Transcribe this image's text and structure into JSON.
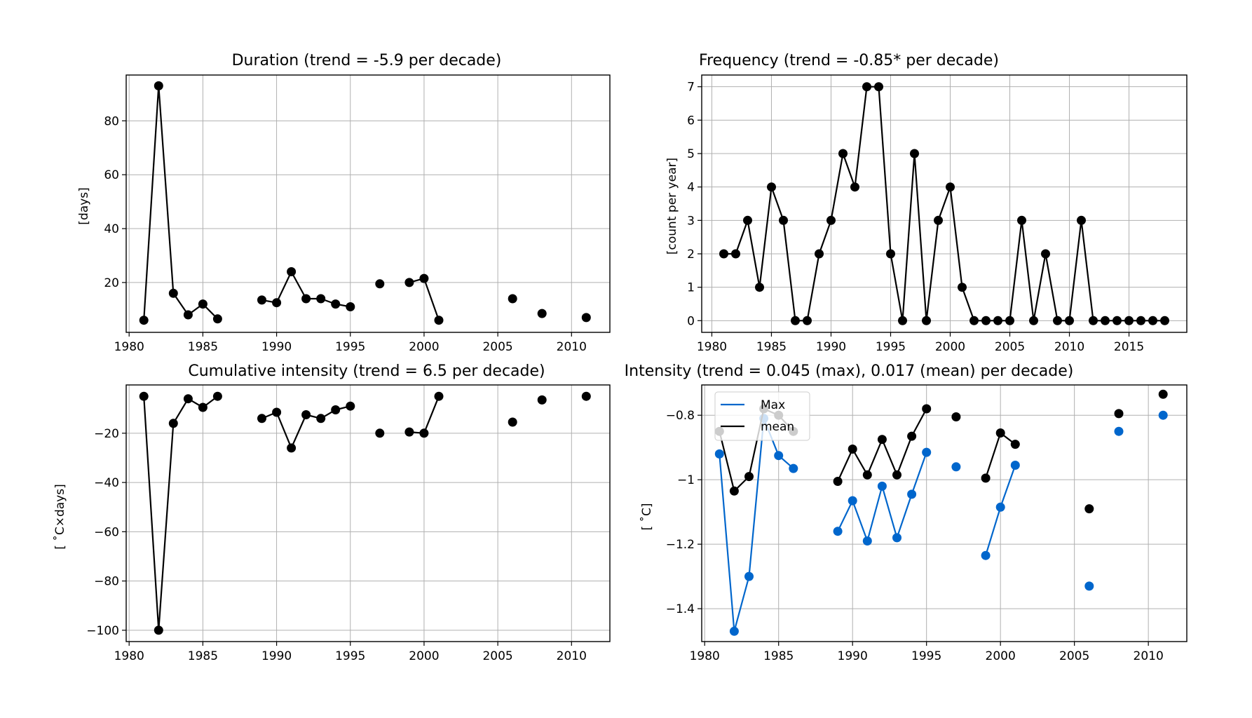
{
  "chart_data": [
    {
      "type": "line",
      "title": "Duration (trend = -5.9 per decade)",
      "xlabel": "",
      "ylabel": "[days]",
      "xlim": [
        1979.8,
        2012.6
      ],
      "ylim": [
        1.5,
        97
      ],
      "xticks": [
        1980,
        1985,
        1990,
        1995,
        2000,
        2005,
        2010
      ],
      "yticks": [
        20,
        40,
        60,
        80
      ],
      "grid": true,
      "series": [
        {
          "color": "#000000",
          "x": [
            1981,
            1982,
            1983,
            1984,
            1985,
            1986,
            1987,
            1988,
            1989,
            1990,
            1991,
            1992,
            1993,
            1994,
            1995,
            1996,
            1997,
            1998,
            1999,
            2000,
            2001,
            2002,
            2003,
            2004,
            2005,
            2006,
            2007,
            2008,
            2009,
            2010,
            2011
          ],
          "values": [
            6,
            93,
            16,
            8,
            12,
            6.5,
            null,
            null,
            13.5,
            12.5,
            24,
            14,
            14,
            12,
            11,
            null,
            19.5,
            null,
            20,
            21.5,
            6,
            null,
            null,
            null,
            null,
            14,
            null,
            8.5,
            null,
            null,
            7
          ]
        }
      ]
    },
    {
      "type": "line",
      "title": "Frequency (trend = -0.85* per decade)",
      "xlabel": "",
      "ylabel": "[count per year]",
      "xlim": [
        1979.15,
        2019.85
      ],
      "ylim": [
        -0.35,
        7.35
      ],
      "xticks": [
        1980,
        1985,
        1990,
        1995,
        2000,
        2005,
        2010,
        2015
      ],
      "yticks": [
        0,
        1,
        2,
        3,
        4,
        5,
        6,
        7
      ],
      "grid": true,
      "series": [
        {
          "color": "#000000",
          "x": [
            1981,
            1982,
            1983,
            1984,
            1985,
            1986,
            1987,
            1988,
            1989,
            1990,
            1991,
            1992,
            1993,
            1994,
            1995,
            1996,
            1997,
            1998,
            1999,
            2000,
            2001,
            2002,
            2003,
            2004,
            2005,
            2006,
            2007,
            2008,
            2009,
            2010,
            2011,
            2012,
            2013,
            2014,
            2015,
            2016,
            2017,
            2018
          ],
          "values": [
            2,
            2,
            3,
            1,
            4,
            3,
            0,
            0,
            2,
            3,
            5,
            4,
            7,
            7,
            2,
            0,
            5,
            0,
            3,
            4,
            1,
            0,
            0,
            0,
            0,
            3,
            0,
            2,
            0,
            0,
            3,
            0,
            0,
            0,
            0,
            0,
            0,
            0
          ]
        }
      ]
    },
    {
      "type": "line",
      "title": "Cumulative intensity (trend = 6.5 per decade)",
      "xlabel": "",
      "ylabel": "[$^\\circ$C×days]",
      "ylabel_display": "[ ˚C×days]",
      "xlim": [
        1979.8,
        2012.6
      ],
      "ylim": [
        -104.6,
        -0.4
      ],
      "xticks": [
        1980,
        1985,
        1990,
        1995,
        2000,
        2005,
        2010
      ],
      "yticks": [
        -100,
        -80,
        -60,
        -40,
        -20
      ],
      "grid": true,
      "series": [
        {
          "color": "#000000",
          "x": [
            1981,
            1982,
            1983,
            1984,
            1985,
            1986,
            1987,
            1988,
            1989,
            1990,
            1991,
            1992,
            1993,
            1994,
            1995,
            1996,
            1997,
            1998,
            1999,
            2000,
            2001,
            2002,
            2003,
            2004,
            2005,
            2006,
            2007,
            2008,
            2009,
            2010,
            2011
          ],
          "values": [
            -5,
            -100,
            -16,
            -6,
            -9.5,
            -5,
            null,
            null,
            -14,
            -11.5,
            -26,
            -12.5,
            -14,
            -10.5,
            -9,
            null,
            -20,
            null,
            -19.5,
            -20,
            -5,
            null,
            null,
            null,
            null,
            -15.5,
            null,
            -6.5,
            null,
            null,
            -5
          ]
        }
      ]
    },
    {
      "type": "line",
      "title": "Intensity (trend = 0.045 (max), 0.017 (mean) per decade)",
      "xlabel": "",
      "ylabel": "[ ˚C]",
      "xlim": [
        1979.8,
        2012.6
      ],
      "ylim": [
        -1.502,
        -0.706
      ],
      "xticks": [
        1980,
        1985,
        1990,
        1995,
        2000,
        2005,
        2010
      ],
      "yticks": [
        -1.4,
        -1.2,
        -1.0,
        -0.8
      ],
      "grid": true,
      "legend": "upper-left",
      "series": [
        {
          "name": "Max",
          "color": "#0066cc",
          "x": [
            1981,
            1982,
            1983,
            1984,
            1985,
            1986,
            1987,
            1988,
            1989,
            1990,
            1991,
            1992,
            1993,
            1994,
            1995,
            1996,
            1997,
            1998,
            1999,
            2000,
            2001,
            2002,
            2003,
            2004,
            2005,
            2006,
            2007,
            2008,
            2009,
            2010,
            2011
          ],
          "values": [
            -0.92,
            -1.47,
            -1.3,
            -0.81,
            -0.925,
            -0.965,
            null,
            null,
            -1.16,
            -1.065,
            -1.19,
            -1.02,
            -1.18,
            -1.045,
            -0.915,
            null,
            -0.96,
            null,
            -1.235,
            -1.085,
            -0.955,
            null,
            null,
            null,
            null,
            -1.33,
            null,
            -0.85,
            null,
            null,
            -0.8
          ]
        },
        {
          "name": "mean",
          "color": "#000000",
          "x": [
            1981,
            1982,
            1983,
            1984,
            1985,
            1986,
            1987,
            1988,
            1989,
            1990,
            1991,
            1992,
            1993,
            1994,
            1995,
            1996,
            1997,
            1998,
            1999,
            2000,
            2001,
            2002,
            2003,
            2004,
            2005,
            2006,
            2007,
            2008,
            2009,
            2010,
            2011
          ],
          "values": [
            -0.85,
            -1.035,
            -0.99,
            -0.78,
            -0.8,
            -0.85,
            null,
            null,
            -1.005,
            -0.905,
            -0.985,
            -0.875,
            -0.985,
            -0.865,
            -0.78,
            null,
            -0.805,
            null,
            -0.995,
            -0.855,
            -0.89,
            null,
            null,
            null,
            null,
            -1.09,
            null,
            -0.795,
            null,
            null,
            -0.735
          ]
        }
      ]
    }
  ]
}
